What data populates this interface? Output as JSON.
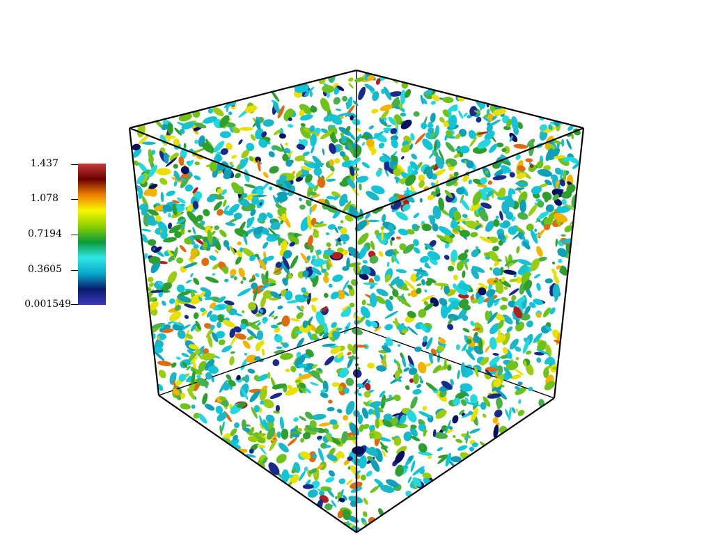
{
  "colorbar": {
    "ticks": [
      "1.437",
      "1.078",
      "0.7194",
      "0.3605",
      "0.001549"
    ],
    "colormap": [
      "#3a3ab8",
      "#0a1a6e",
      "#08a8c8",
      "#2ee8e8",
      "#0a9a3a",
      "#8cd000",
      "#f8f800",
      "#f08000",
      "#6a0000",
      "#c83a3a"
    ]
  },
  "scene": {
    "edge_color": "#000000",
    "palette": [
      "#12c4d6",
      "#1ab7c9",
      "#0fa0b8",
      "#2e9e2e",
      "#6fc21a",
      "#9acd12",
      "#e8e000",
      "#f2b400",
      "#e06a10",
      "#b02020",
      "#1a2a8a",
      "#0a1060",
      "#24d8e0",
      "#48b048"
    ]
  }
}
